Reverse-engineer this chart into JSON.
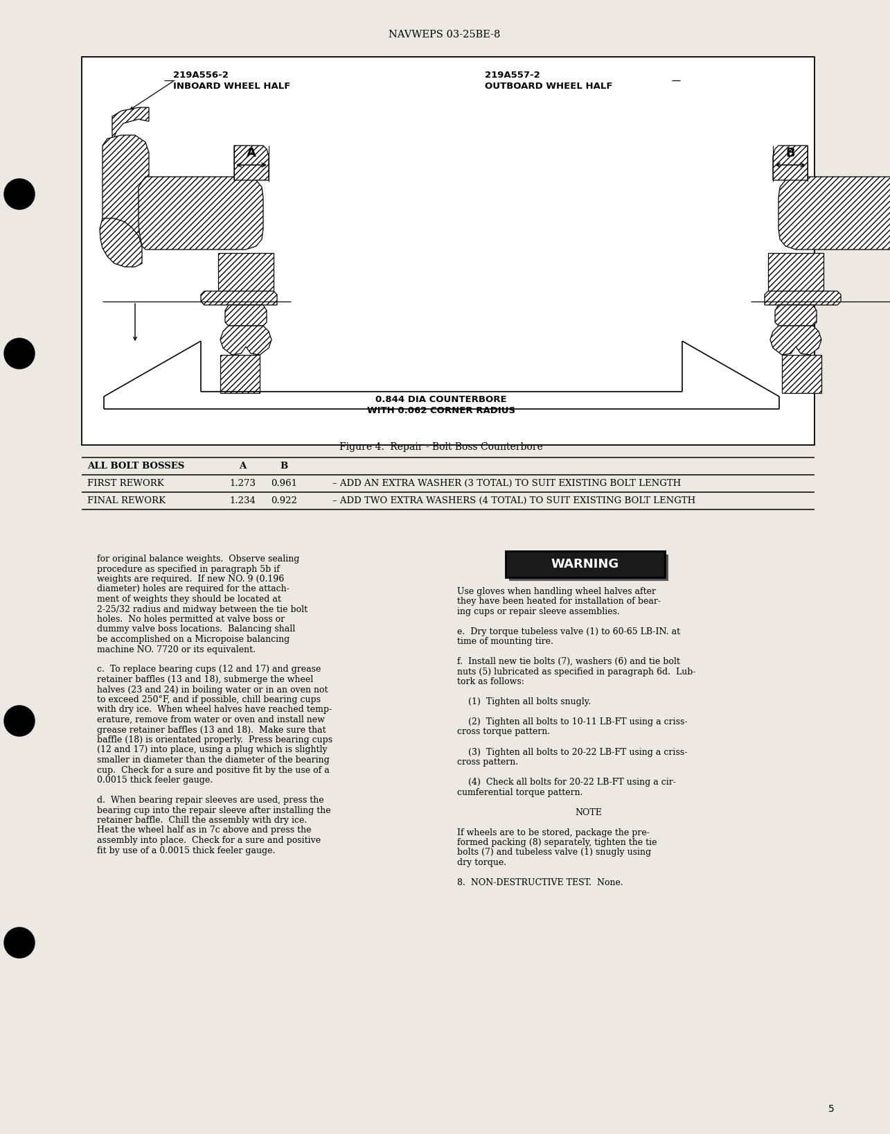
{
  "page_header": "NAVWEPS 03-25BE-8",
  "page_number": "5",
  "figure_caption": "Figure 4.  Repair - Bolt Boss Counterbore",
  "bg_color": "#ece9e3",
  "text_color": "#111111",
  "diagram": {
    "left_label_top": "219A556-2",
    "left_label_bottom": "INBOARD WHEEL HALF",
    "right_label_top": "219A557-2",
    "right_label_bottom": "OUTBOARD WHEEL HALF",
    "dim_A": "A",
    "dim_B": "B",
    "counterbore_text1": "0.844 DIA COUNTERBORE",
    "counterbore_text2": "WITH 0.062 CORNER RADIUS"
  },
  "table_header": "ALL BOLT BOSSES   A       B",
  "table_rows": [
    "FIRST REWORK    1.273   0.961   – ADD AN EXTRA WASHER (3 TOTAL) TO SUIT EXISTING BOLT LENGTH",
    "FINAL REWORK    1.234   0.922   – ADD TWO EXTRA WASHERS (4 TOTAL) TO SUIT EXISTING BOLT LENGTH"
  ],
  "left_col": [
    "for original balance weights.  Observe sealing",
    "procedure as specified in paragraph 5b if",
    "weights are required.  If new NO. 9 (0.196",
    "diameter) holes are required for the attach-",
    "ment of weights they should be located at",
    "2-25/32 radius and midway between the tie bolt",
    "holes.  No holes permitted at valve boss or",
    "dummy valve boss locations.  Balancing shall",
    "be accomplished on a Micropoise balancing",
    "machine NO. 7720 or its equivalent.",
    "",
    "c.  To replace bearing cups (12 and 17) and grease",
    "retainer baffles (13 and 18), submerge the wheel",
    "halves (23 and 24) in boiling water or in an oven not",
    "to exceed 250°F, and if possible, chill bearing cups",
    "with dry ice.  When wheel halves have reached temp-",
    "erature, remove from water or oven and install new",
    "grease retainer baffles (13 and 18).  Make sure that",
    "baffle (18) is orientated properly.  Press bearing cups",
    "(12 and 17) into place, using a plug which is slightly",
    "smaller in diameter than the diameter of the bearing",
    "cup.  Check for a sure and positive fit by the use of a",
    "0.0015 thick feeler gauge.",
    "",
    "d.  When bearing repair sleeves are used, press the",
    "bearing cup into the repair sleeve after installing the",
    "retainer baffle.  Chill the assembly with dry ice.",
    "Heat the wheel half as in 7c above and press the",
    "assembly into place.  Check for a sure and positive",
    "fit by use of a 0.0015 thick feeler gauge."
  ],
  "right_col_pre_warn": [
    "Use gloves when handling wheel halves after",
    "they have been heated for installation of bear-",
    "ing cups or repair sleeve assemblies."
  ],
  "right_col_post_warn": [
    "e.  Dry torque tubeless valve (1) to 60-65 LB-IN. at",
    "time of mounting tire.",
    "",
    "f.  Install new tie bolts (7), washers (6) and tie bolt",
    "nuts (5) lubricated as specified in paragraph 6d.  Lub-",
    "tork as follows:",
    "",
    "    (1)  Tighten all bolts snugly.",
    "",
    "    (2)  Tighten all bolts to 10-11 LB-FT using a criss-",
    "cross torque pattern.",
    "",
    "    (3)  Tighten all bolts to 20-22 LB-FT using a criss-",
    "cross pattern.",
    "",
    "    (4)  Check all bolts for 20-22 LB-FT using a cir-",
    "cumferential torque pattern.",
    "",
    "NOTE",
    "",
    "If wheels are to be stored, package the pre-",
    "formed packing (8) separately, tighten the tie",
    "bolts (7) and tubeless valve (1) snugly using",
    "dry torque.",
    "",
    "8.  NON-DESTRUCTIVE TEST.  None."
  ]
}
